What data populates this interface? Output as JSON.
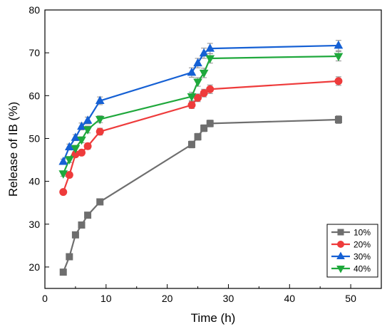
{
  "chart_data": {
    "type": "line",
    "title": "",
    "xlabel": "Time (h)",
    "ylabel": "Release of IB (%)",
    "xlim": [
      0,
      55
    ],
    "ylim": [
      15,
      80
    ],
    "xticks": [
      0,
      10,
      20,
      30,
      40,
      50
    ],
    "yticks": [
      20,
      30,
      40,
      50,
      60,
      70,
      80
    ],
    "grid": false,
    "legend_position": "bottom-right",
    "error_bars": true,
    "series": [
      {
        "name": "10%",
        "color": "#6e6e6e",
        "marker": "square",
        "x": [
          3,
          4,
          5,
          6,
          7,
          9,
          24,
          25,
          26,
          27,
          48
        ],
        "y": [
          18.8,
          22.4,
          27.5,
          29.8,
          32.1,
          35.2,
          48.6,
          50.4,
          52.4,
          53.5,
          54.4
        ],
        "err": [
          0.4,
          0.4,
          0.4,
          0.4,
          0.4,
          0.5,
          0.8,
          0.8,
          0.8,
          0.8,
          0.9
        ]
      },
      {
        "name": "20%",
        "color": "#ee3b3b",
        "marker": "circle",
        "x": [
          3,
          4,
          5,
          6,
          7,
          9,
          24,
          25,
          26,
          27,
          48
        ],
        "y": [
          37.5,
          41.5,
          46.3,
          46.7,
          48.2,
          51.6,
          57.8,
          59.5,
          60.6,
          61.5,
          63.4
        ],
        "err": [
          0.5,
          0.6,
          0.6,
          0.6,
          0.7,
          0.8,
          0.8,
          0.9,
          0.9,
          1.0,
          1.0
        ]
      },
      {
        "name": "30%",
        "color": "#1560d4",
        "marker": "triangle-up",
        "x": [
          3,
          4,
          5,
          6,
          7,
          9,
          24,
          25,
          26,
          27,
          48
        ],
        "y": [
          44.6,
          48.0,
          50.2,
          52.8,
          54.2,
          58.8,
          65.4,
          67.6,
          69.9,
          71.0,
          71.7
        ],
        "err": [
          0.6,
          0.7,
          0.7,
          0.8,
          0.8,
          0.9,
          1.1,
          1.1,
          1.2,
          1.2,
          1.2
        ]
      },
      {
        "name": "40%",
        "color": "#1fa83c",
        "marker": "triangle-down",
        "x": [
          3,
          4,
          5,
          6,
          7,
          9,
          24,
          25,
          26,
          27,
          48
        ],
        "y": [
          41.8,
          45.1,
          47.7,
          49.7,
          52.1,
          54.5,
          59.8,
          63.2,
          65.3,
          68.7,
          69.2
        ],
        "err": [
          0.6,
          0.7,
          0.7,
          0.7,
          0.8,
          0.8,
          1.0,
          1.0,
          1.1,
          1.1,
          1.1
        ]
      }
    ]
  }
}
